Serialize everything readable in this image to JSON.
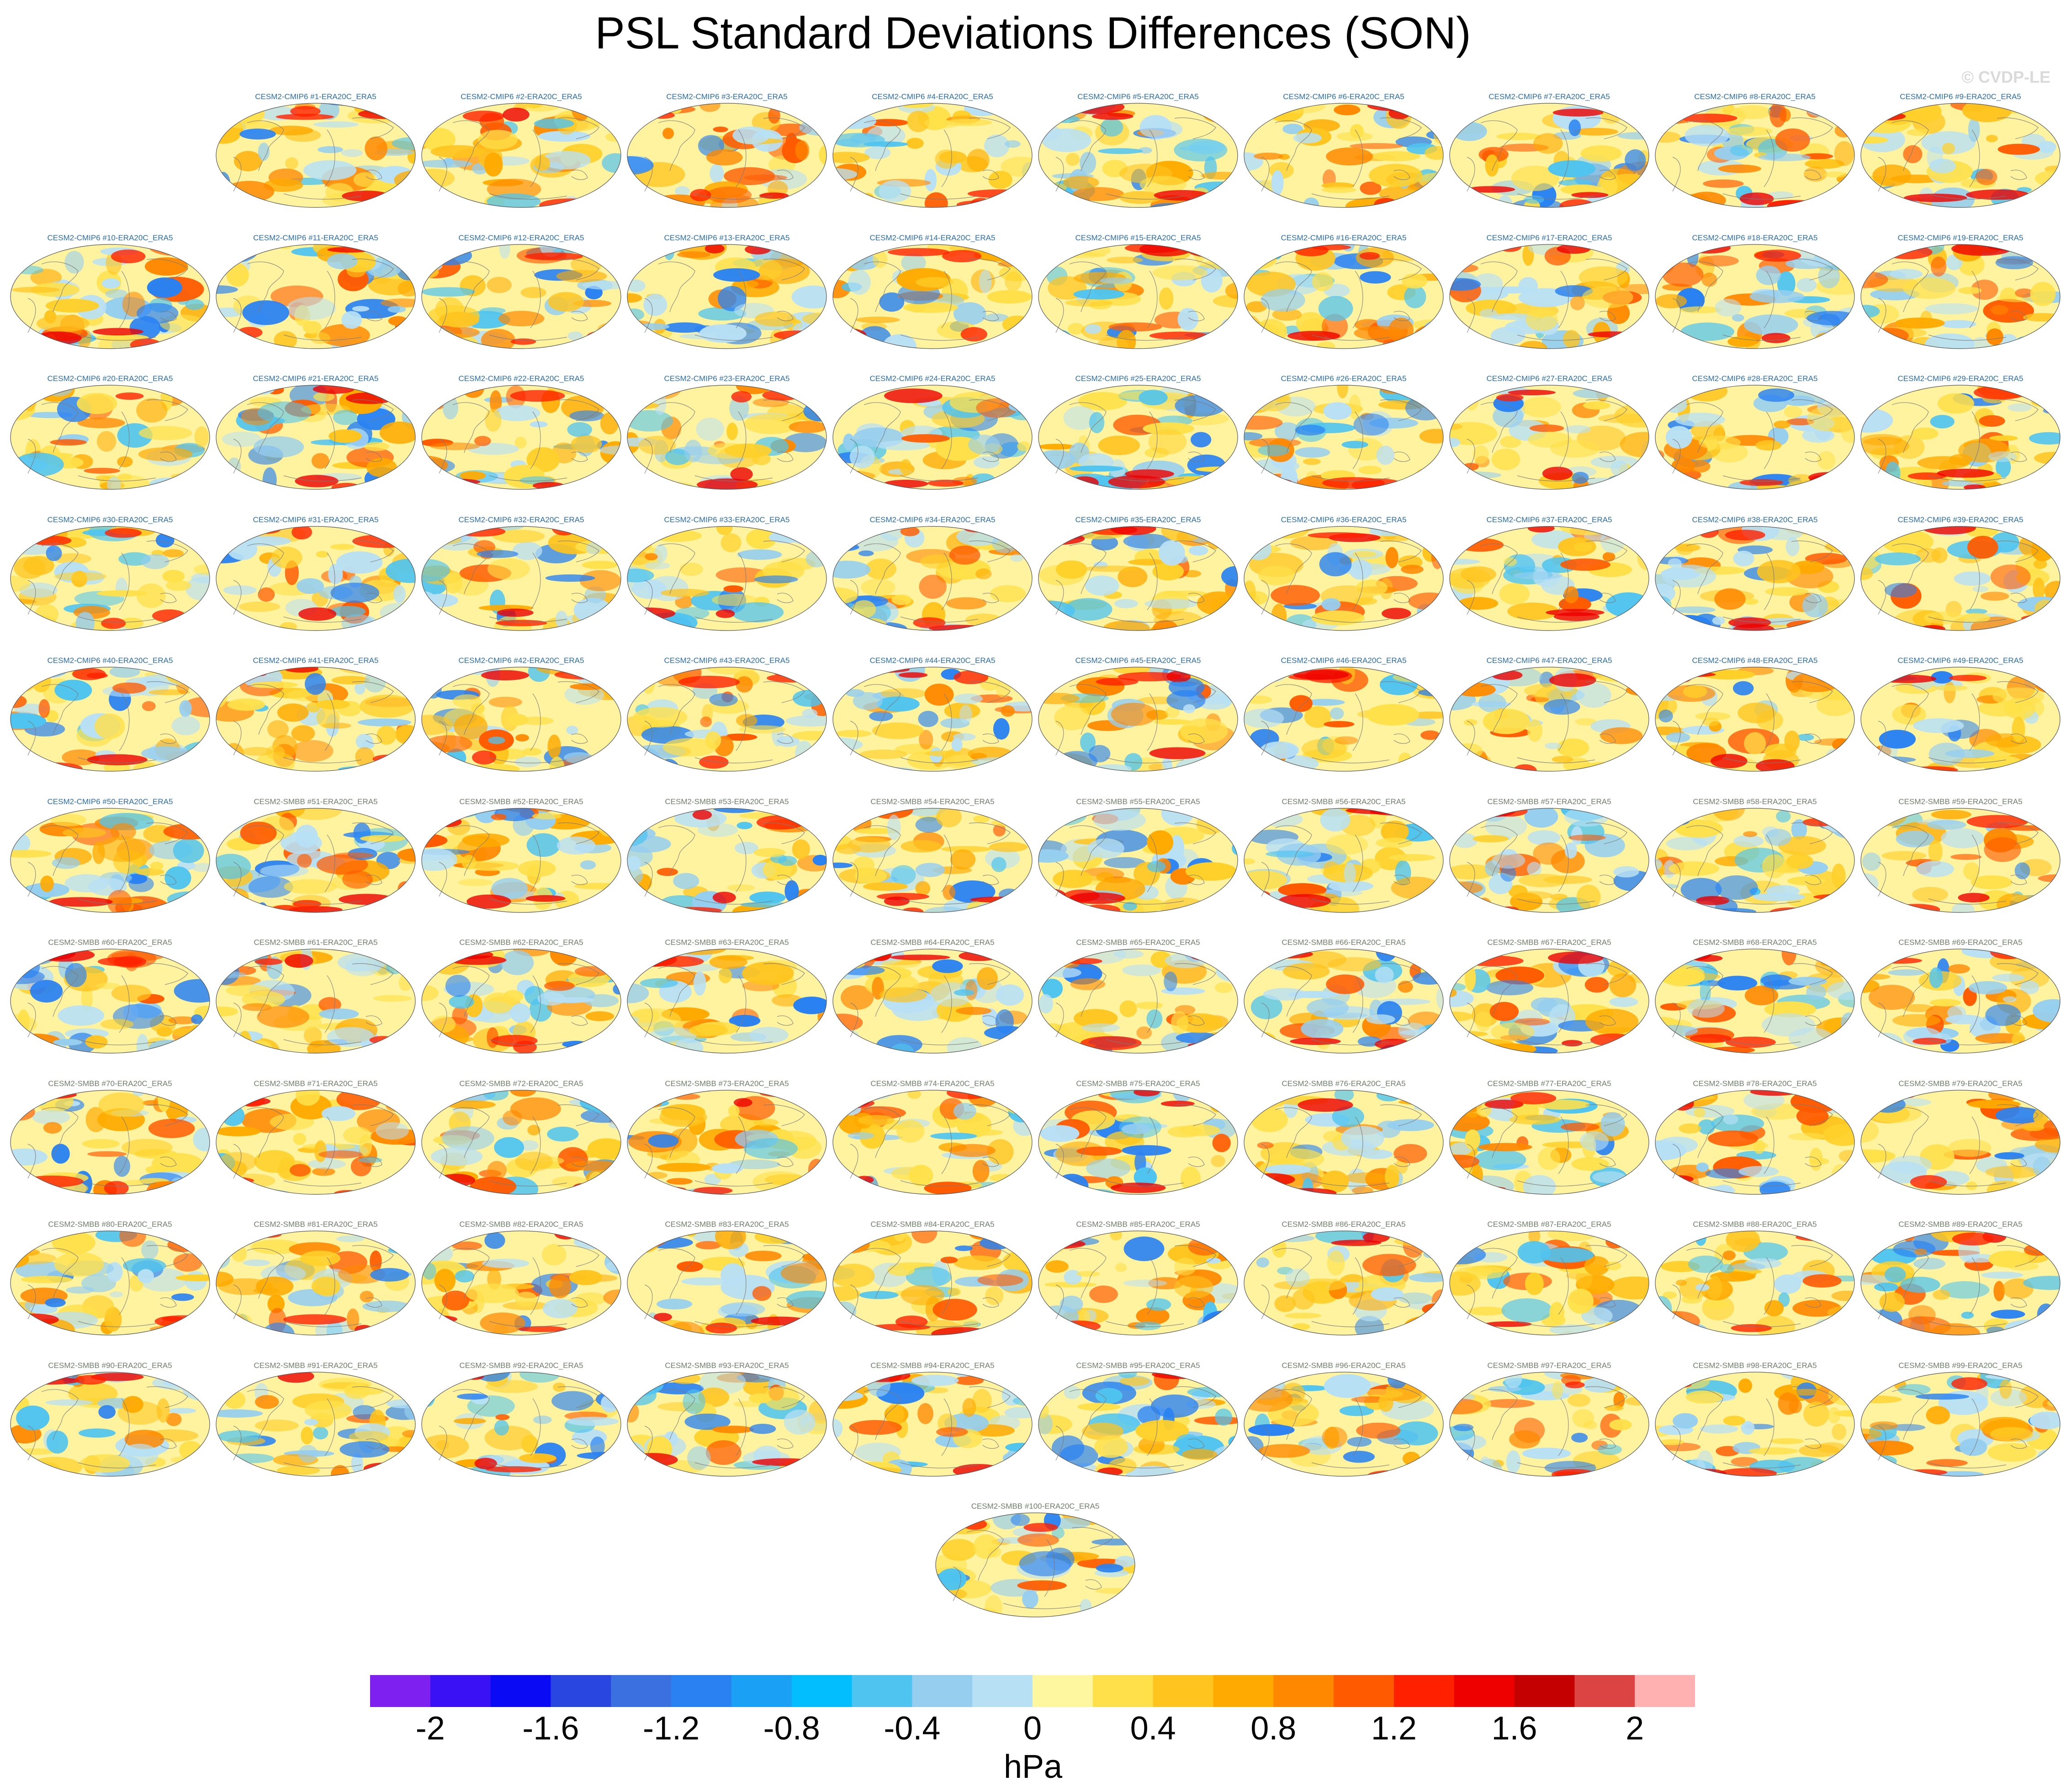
{
  "title": "PSL Standard Deviations Differences (SON)",
  "watermark": "© CVDP-LE",
  "panel_label_color_cmip6": "#2a6ea8",
  "panel_label_color_smbb": "#6f7f6a",
  "panels": [
    "CESM2-CMIP6 #1-ERA20C_ERA5",
    "CESM2-CMIP6 #2-ERA20C_ERA5",
    "CESM2-CMIP6 #3-ERA20C_ERA5",
    "CESM2-CMIP6 #4-ERA20C_ERA5",
    "CESM2-CMIP6 #5-ERA20C_ERA5",
    "CESM2-CMIP6 #6-ERA20C_ERA5",
    "CESM2-CMIP6 #7-ERA20C_ERA5",
    "CESM2-CMIP6 #8-ERA20C_ERA5",
    "CESM2-CMIP6 #9-ERA20C_ERA5",
    "CESM2-CMIP6 #10-ERA20C_ERA5",
    "CESM2-CMIP6 #11-ERA20C_ERA5",
    "CESM2-CMIP6 #12-ERA20C_ERA5",
    "CESM2-CMIP6 #13-ERA20C_ERA5",
    "CESM2-CMIP6 #14-ERA20C_ERA5",
    "CESM2-CMIP6 #15-ERA20C_ERA5",
    "CESM2-CMIP6 #16-ERA20C_ERA5",
    "CESM2-CMIP6 #17-ERA20C_ERA5",
    "CESM2-CMIP6 #18-ERA20C_ERA5",
    "CESM2-CMIP6 #19-ERA20C_ERA5",
    "CESM2-CMIP6 #20-ERA20C_ERA5",
    "CESM2-CMIP6 #21-ERA20C_ERA5",
    "CESM2-CMIP6 #22-ERA20C_ERA5",
    "CESM2-CMIP6 #23-ERA20C_ERA5",
    "CESM2-CMIP6 #24-ERA20C_ERA5",
    "CESM2-CMIP6 #25-ERA20C_ERA5",
    "CESM2-CMIP6 #26-ERA20C_ERA5",
    "CESM2-CMIP6 #27-ERA20C_ERA5",
    "CESM2-CMIP6 #28-ERA20C_ERA5",
    "CESM2-CMIP6 #29-ERA20C_ERA5",
    "CESM2-CMIP6 #30-ERA20C_ERA5",
    "CESM2-CMIP6 #31-ERA20C_ERA5",
    "CESM2-CMIP6 #32-ERA20C_ERA5",
    "CESM2-CMIP6 #33-ERA20C_ERA5",
    "CESM2-CMIP6 #34-ERA20C_ERA5",
    "CESM2-CMIP6 #35-ERA20C_ERA5",
    "CESM2-CMIP6 #36-ERA20C_ERA5",
    "CESM2-CMIP6 #37-ERA20C_ERA5",
    "CESM2-CMIP6 #38-ERA20C_ERA5",
    "CESM2-CMIP6 #39-ERA20C_ERA5",
    "CESM2-CMIP6 #40-ERA20C_ERA5",
    "CESM2-CMIP6 #41-ERA20C_ERA5",
    "CESM2-CMIP6 #42-ERA20C_ERA5",
    "CESM2-CMIP6 #43-ERA20C_ERA5",
    "CESM2-CMIP6 #44-ERA20C_ERA5",
    "CESM2-CMIP6 #45-ERA20C_ERA5",
    "CESM2-CMIP6 #46-ERA20C_ERA5",
    "CESM2-CMIP6 #47-ERA20C_ERA5",
    "CESM2-CMIP6 #48-ERA20C_ERA5",
    "CESM2-CMIP6 #49-ERA20C_ERA5",
    "CESM2-CMIP6 #50-ERA20C_ERA5",
    "CESM2-SMBB #51-ERA20C_ERA5",
    "CESM2-SMBB #52-ERA20C_ERA5",
    "CESM2-SMBB #53-ERA20C_ERA5",
    "CESM2-SMBB #54-ERA20C_ERA5",
    "CESM2-SMBB #55-ERA20C_ERA5",
    "CESM2-SMBB #56-ERA20C_ERA5",
    "CESM2-SMBB #57-ERA20C_ERA5",
    "CESM2-SMBB #58-ERA20C_ERA5",
    "CESM2-SMBB #59-ERA20C_ERA5",
    "CESM2-SMBB #60-ERA20C_ERA5",
    "CESM2-SMBB #61-ERA20C_ERA5",
    "CESM2-SMBB #62-ERA20C_ERA5",
    "CESM2-SMBB #63-ERA20C_ERA5",
    "CESM2-SMBB #64-ERA20C_ERA5",
    "CESM2-SMBB #65-ERA20C_ERA5",
    "CESM2-SMBB #66-ERA20C_ERA5",
    "CESM2-SMBB #67-ERA20C_ERA5",
    "CESM2-SMBB #68-ERA20C_ERA5",
    "CESM2-SMBB #69-ERA20C_ERA5",
    "CESM2-SMBB #70-ERA20C_ERA5",
    "CESM2-SMBB #71-ERA20C_ERA5",
    "CESM2-SMBB #72-ERA20C_ERA5",
    "CESM2-SMBB #73-ERA20C_ERA5",
    "CESM2-SMBB #74-ERA20C_ERA5",
    "CESM2-SMBB #75-ERA20C_ERA5",
    "CESM2-SMBB #76-ERA20C_ERA5",
    "CESM2-SMBB #77-ERA20C_ERA5",
    "CESM2-SMBB #78-ERA20C_ERA5",
    "CESM2-SMBB #79-ERA20C_ERA5",
    "CESM2-SMBB #80-ERA20C_ERA5",
    "CESM2-SMBB #81-ERA20C_ERA5",
    "CESM2-SMBB #82-ERA20C_ERA5",
    "CESM2-SMBB #83-ERA20C_ERA5",
    "CESM2-SMBB #84-ERA20C_ERA5",
    "CESM2-SMBB #85-ERA20C_ERA5",
    "CESM2-SMBB #86-ERA20C_ERA5",
    "CESM2-SMBB #87-ERA20C_ERA5",
    "CESM2-SMBB #88-ERA20C_ERA5",
    "CESM2-SMBB #89-ERA20C_ERA5",
    "CESM2-SMBB #90-ERA20C_ERA5",
    "CESM2-SMBB #91-ERA20C_ERA5",
    "CESM2-SMBB #92-ERA20C_ERA5",
    "CESM2-SMBB #93-ERA20C_ERA5",
    "CESM2-SMBB #94-ERA20C_ERA5",
    "CESM2-SMBB #95-ERA20C_ERA5",
    "CESM2-SMBB #96-ERA20C_ERA5",
    "CESM2-SMBB #97-ERA20C_ERA5",
    "CESM2-SMBB #98-ERA20C_ERA5",
    "CESM2-SMBB #99-ERA20C_ERA5",
    "CESM2-SMBB #100-ERA20C_ERA5"
  ],
  "colorbar": {
    "colors": [
      "#7d20f0",
      "#3a10f5",
      "#0a0af5",
      "#2a46e0",
      "#3a70e0",
      "#2a82f2",
      "#1aa0f5",
      "#02beff",
      "#50c4f0",
      "#96cef0",
      "#b8e0f5",
      "#fff6a0",
      "#ffe04a",
      "#ffc41e",
      "#ffaa00",
      "#ff8800",
      "#ff5a00",
      "#ff2000",
      "#ee0000",
      "#c40000",
      "#dc4444",
      "#ffb0b0"
    ],
    "ticks": [
      "-2",
      "-1.6",
      "-1.2",
      "-0.8",
      "-0.4",
      "0",
      "0.4",
      "0.8",
      "1.2",
      "1.6",
      "2"
    ],
    "units": "hPa"
  }
}
